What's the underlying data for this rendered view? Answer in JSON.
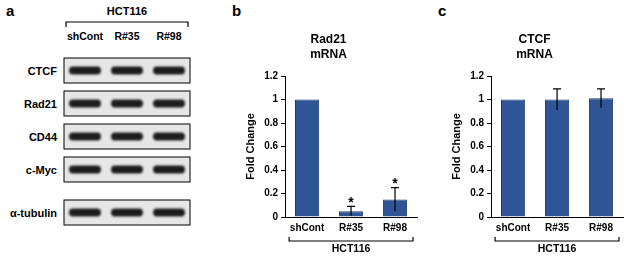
{
  "panel_a": {
    "label": "a",
    "type": "western_blot",
    "group_label": "HCT116",
    "lanes": [
      "shCont",
      "R#35",
      "R#98"
    ],
    "proteins": [
      "CTCF",
      "Rad21",
      "CD44",
      "c-Myc",
      "α-tubulin"
    ]
  },
  "chart_data": [
    {
      "label": "b",
      "type": "bar",
      "title": "Rad21 mRNA",
      "y_label": "Fold Change",
      "group_label": "HCT116",
      "categories": [
        "shCont",
        "R#35",
        "R#98"
      ],
      "values": [
        1,
        0.05,
        0.15
      ],
      "errors": [
        0,
        0.04,
        0.1
      ],
      "annotations": [
        {
          "category": "R#35",
          "text": "*"
        },
        {
          "category": "R#98",
          "text": "*"
        }
      ],
      "color": "#2f5597",
      "ylim": [
        0,
        1.2
      ],
      "yticks": [
        0,
        0.2,
        0.4,
        0.6,
        0.8,
        1,
        1.2
      ],
      "grid": false
    },
    {
      "label": "c",
      "type": "bar",
      "title": "CTCF mRNA",
      "y_label": "Fold Change",
      "group_label": "HCT116",
      "categories": [
        "shCont",
        "R#35",
        "R#98"
      ],
      "values": [
        1,
        1,
        1.01
      ],
      "errors": [
        0,
        0.09,
        0.08
      ],
      "color": "#2f5597",
      "ylim": [
        0,
        1.2
      ],
      "yticks": [
        0,
        0.2,
        0.4,
        0.6,
        0.8,
        1,
        1.2
      ],
      "grid": false
    }
  ]
}
